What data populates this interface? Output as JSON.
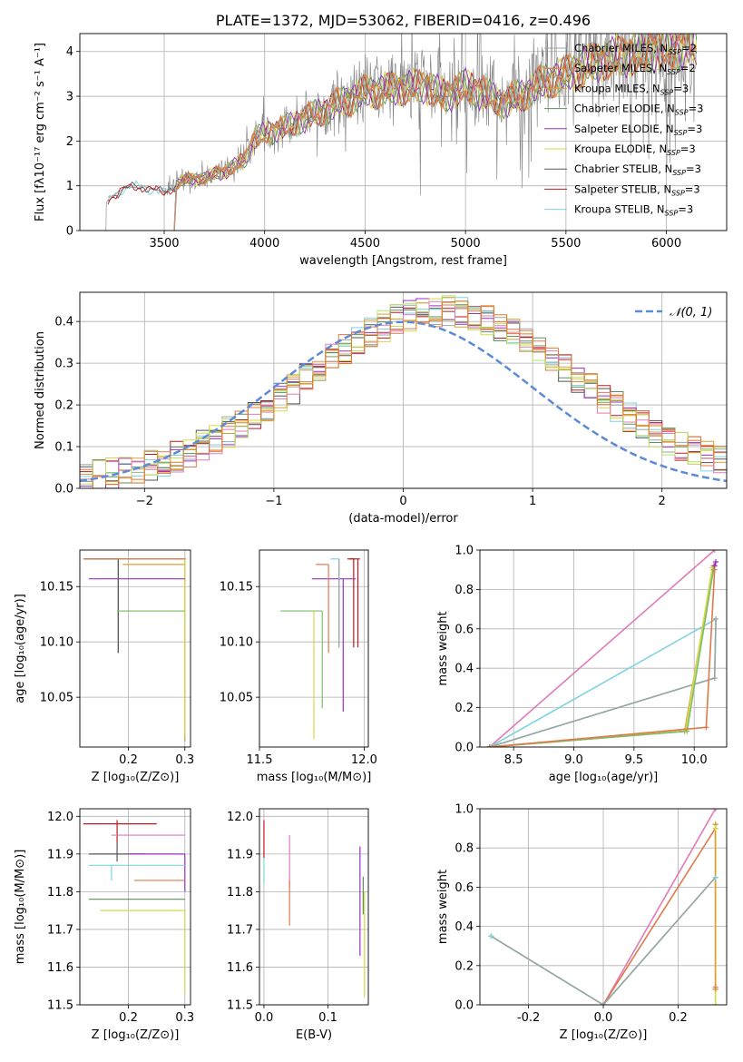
{
  "figure_title": "PLATE=1372, MJD=53062, FIBERID=0416, z=0.496",
  "colors": {
    "chabrier_miles": "#9aa5a0",
    "salpeter_miles": "#e0794a",
    "kroupa_miles": "#d9a030",
    "chabrier_elodie": "#5d8f5b",
    "salpeter_elodie": "#9b2fc4",
    "kroupa_elodie": "#d6d84a",
    "chabrier_stelib": "#555555",
    "salpeter_stelib": "#c0181e",
    "kroupa_stelib": "#7fd3e0",
    "gaussian": "#5b8ad8",
    "pink": "#e07bb8",
    "lime": "#b5e06a",
    "green": "#7bbf6a",
    "orange": "#e07b24",
    "grid": "#b0b0b0"
  },
  "chart_data": [
    {
      "id": "spectrum",
      "type": "line",
      "title": "PLATE=1372, MJD=53062, FIBERID=0416, z=0.496",
      "xlabel": "wavelength [Angstrom, rest frame]",
      "ylabel": "Flux [fλ10⁻¹⁷ erg cm⁻² s⁻¹ A⁻¹]",
      "xlim": [
        3080,
        6300
      ],
      "ylim": [
        0,
        4.4
      ],
      "xticks": [
        3500,
        4000,
        4500,
        5000,
        5500,
        6000
      ],
      "yticks": [
        0,
        1,
        2,
        3,
        4
      ],
      "legend_position": "top-right",
      "legend": [
        {
          "name": "Chabrier MILES, N",
          "sub": "SSP",
          "suffix": "=2",
          "color": "chabrier_miles"
        },
        {
          "name": "Salpeter MILES, N",
          "sub": "SSP",
          "suffix": "=2",
          "color": "salpeter_miles"
        },
        {
          "name": "Kroupa MILES, N",
          "sub": "SSP",
          "suffix": "=3",
          "color": "kroupa_miles"
        },
        {
          "name": "Chabrier ELODIE, N",
          "sub": "SSP",
          "suffix": "=3",
          "color": "chabrier_elodie"
        },
        {
          "name": "Salpeter ELODIE, N",
          "sub": "SSP",
          "suffix": "=3",
          "color": "salpeter_elodie"
        },
        {
          "name": "Kroupa ELODIE, N",
          "sub": "SSP",
          "suffix": "=3",
          "color": "kroupa_elodie"
        },
        {
          "name": "Chabrier STELIB, N",
          "sub": "SSP",
          "suffix": "=3",
          "color": "chabrier_stelib"
        },
        {
          "name": "Salpeter STELIB, N",
          "sub": "SSP",
          "suffix": "=3",
          "color": "salpeter_stelib"
        },
        {
          "name": "Kroupa STELIB, N",
          "sub": "SSP",
          "suffix": "=3",
          "color": "kroupa_stelib"
        }
      ],
      "data_start": 3210,
      "data_end": 6150,
      "model_start": 3550,
      "envelope": {
        "x": [
          3210,
          3230,
          3300,
          3400,
          3500,
          3600,
          3700,
          3800,
          3900,
          3950,
          4000,
          4100,
          4200,
          4300,
          4400,
          4500,
          4600,
          4700,
          4800,
          4900,
          5000,
          5100,
          5200,
          5300,
          5400,
          5500,
          5600,
          5700,
          5800,
          5900,
          6000,
          6100,
          6150
        ],
        "y": [
          0.6,
          0.75,
          0.95,
          1.0,
          0.85,
          1.15,
          1.2,
          1.35,
          1.6,
          2.1,
          2.2,
          2.35,
          2.55,
          2.75,
          2.95,
          3.15,
          3.2,
          3.25,
          3.3,
          3.05,
          3.3,
          3.1,
          2.9,
          3.15,
          3.4,
          3.55,
          3.75,
          3.9,
          4.0,
          4.1,
          4.15,
          4.2,
          4.25
        ]
      }
    },
    {
      "id": "residuals",
      "type": "step",
      "xlabel": "(data-model)/error",
      "ylabel": "Normed distribution",
      "xlim": [
        -2.5,
        2.5
      ],
      "ylim": [
        0,
        0.47
      ],
      "xticks": [
        -2,
        -1,
        0,
        1,
        2
      ],
      "yticks": [
        0.0,
        0.1,
        0.2,
        0.3,
        0.4
      ],
      "legend_position": "top-right",
      "legend": [
        {
          "name": "𝒩(0, 1)",
          "color": "gaussian",
          "style": "dashed"
        }
      ],
      "bin_width": 0.1,
      "gaussian": {
        "mu": 0,
        "sigma": 1
      }
    },
    {
      "id": "age_vs_Z",
      "type": "errorbar",
      "xlabel": "Z [log₁₀(Z/Z⊙)]",
      "ylabel": "age  [log₁₀(age/yr)]",
      "xlim": [
        0.114,
        0.31
      ],
      "ylim": [
        10.005,
        10.183
      ],
      "xticks": [
        0.2,
        0.3
      ],
      "yticks": [
        10.05,
        10.1,
        10.15
      ],
      "points": [
        {
          "x": 0.182,
          "y": 10.175,
          "xerr": [
            0.06,
            0.12
          ],
          "yerr": [
            0.085,
            0.0
          ],
          "color": "chabrier_miles"
        },
        {
          "x": 0.182,
          "y": 10.175,
          "xerr": [
            0.06,
            0.0
          ],
          "yerr": [
            0.085,
            0.0
          ],
          "color": "chabrier_stelib"
        },
        {
          "x": 0.3,
          "y": 10.175,
          "xerr": [
            0.18,
            0.0
          ],
          "yerr": [
            0.02,
            0.0
          ],
          "color": "salpeter_miles"
        },
        {
          "x": 0.3,
          "y": 10.17,
          "xerr": [
            0.11,
            0.0
          ],
          "yerr": [
            0.16,
            0.0
          ],
          "color": "kroupa_miles"
        },
        {
          "x": 0.3,
          "y": 10.175,
          "xerr": [
            0.0,
            0.0
          ],
          "yerr": [
            0.16,
            0.0
          ],
          "color": "kroupa_elodie"
        },
        {
          "x": 0.3,
          "y": 10.157,
          "xerr": [
            0.17,
            0.0
          ],
          "yerr": [
            0.0,
            0.0
          ],
          "color": "salpeter_elodie"
        },
        {
          "x": 0.3,
          "y": 10.128,
          "xerr": [
            0.12,
            0.0
          ],
          "yerr": [
            0.0,
            0.0
          ],
          "color": "kroupa_elodie"
        },
        {
          "x": 0.3,
          "y": 10.128,
          "xerr": [
            0.12,
            0.0
          ],
          "yerr": [
            0.0,
            0.0
          ],
          "color": "green"
        },
        {
          "x": 0.3,
          "y": 10.175,
          "xerr": [
            0.0,
            0.0
          ],
          "yerr": [
            0.0,
            0.0
          ],
          "color": "pink"
        }
      ]
    },
    {
      "id": "age_vs_mass",
      "type": "errorbar",
      "xlabel": "mass [log₁₀(M/M⊙)]",
      "ylabel": "",
      "xlim": [
        11.5,
        12.02
      ],
      "ylim": [
        10.005,
        10.183
      ],
      "xticks": [
        11.5,
        12.0
      ],
      "yticks": [
        10.05,
        10.1,
        10.15
      ],
      "points": [
        {
          "x": 11.97,
          "y": 10.175,
          "xerr": [
            0.04,
            0.01
          ],
          "yerr": [
            0.08,
            0.0
          ],
          "color": "salpeter_stelib"
        },
        {
          "x": 11.95,
          "y": 10.175,
          "xerr": [
            0.03,
            0.0
          ],
          "yerr": [
            0.08,
            0.0
          ],
          "color": "salpeter_stelib"
        },
        {
          "x": 11.9,
          "y": 10.157,
          "xerr": [
            0.15,
            0.06
          ],
          "yerr": [
            0.12,
            0.0
          ],
          "color": "salpeter_elodie"
        },
        {
          "x": 11.88,
          "y": 10.175,
          "xerr": [
            0.04,
            0.0
          ],
          "yerr": [
            0.08,
            0.0
          ],
          "color": "kroupa_stelib"
        },
        {
          "x": 11.83,
          "y": 10.17,
          "xerr": [
            0.06,
            0.0
          ],
          "yerr": [
            0.08,
            0.0
          ],
          "color": "salpeter_miles"
        },
        {
          "x": 11.8,
          "y": 10.128,
          "xerr": [
            0.2,
            0.0
          ],
          "yerr": [
            0.088,
            0.0
          ],
          "color": "green"
        },
        {
          "x": 11.76,
          "y": 10.128,
          "xerr": [
            0.0,
            0.0
          ],
          "yerr": [
            0.116,
            0.0
          ],
          "color": "kroupa_elodie"
        },
        {
          "x": 11.88,
          "y": 10.175,
          "xerr": [
            0.0,
            0.0
          ],
          "yerr": [
            0.08,
            0.0
          ],
          "color": "chabrier_miles"
        }
      ]
    },
    {
      "id": "mass_weight_vs_age",
      "type": "line",
      "xlabel": "age  [log₁₀(age/yr)]",
      "ylabel": "mass weight",
      "xlim": [
        8.22,
        10.27
      ],
      "ylim": [
        0,
        1.0
      ],
      "xticks": [
        8.5,
        9.0,
        9.5,
        10.0
      ],
      "yticks": [
        0.0,
        0.2,
        0.4,
        0.6,
        0.8,
        1.0
      ],
      "series": [
        {
          "color": "pink",
          "x": [
            8.3,
            10.17
          ],
          "y": [
            0.0,
            1.0
          ]
        },
        {
          "color": "kroupa_stelib",
          "x": [
            8.3,
            10.17,
            10.18,
            8.3
          ],
          "y": [
            0.0,
            0.35,
            0.65,
            0.0
          ]
        },
        {
          "color": "chabrier_miles",
          "x": [
            8.3,
            10.17,
            10.18
          ],
          "y": [
            0.0,
            0.35,
            0.65
          ]
        },
        {
          "color": "kroupa_miles",
          "x": [
            8.3,
            9.92,
            10.16,
            10.17
          ],
          "y": [
            0.0,
            0.08,
            0.92,
            0.92
          ]
        },
        {
          "color": "kroupa_elodie",
          "x": [
            8.3,
            9.93,
            10.15
          ],
          "y": [
            0.0,
            0.09,
            0.91
          ]
        },
        {
          "color": "green",
          "x": [
            8.3,
            9.94,
            10.16
          ],
          "y": [
            0.0,
            0.08,
            0.9
          ]
        },
        {
          "color": "salpeter_miles",
          "x": [
            8.3,
            10.1,
            10.17
          ],
          "y": [
            0.0,
            0.1,
            0.9
          ]
        },
        {
          "color": "salpeter_elodie",
          "x": [
            10.17,
            10.18
          ],
          "y": [
            0.92,
            0.94
          ]
        }
      ]
    },
    {
      "id": "mass_vs_Z",
      "type": "errorbar",
      "xlabel": "Z [log₁₀(Z/Z⊙)]",
      "ylabel": "mass [log₁₀(M/M⊙)]",
      "xlim": [
        0.114,
        0.31
      ],
      "ylim": [
        11.5,
        12.02
      ],
      "xticks": [
        0.2,
        0.3
      ],
      "yticks": [
        11.5,
        11.6,
        11.7,
        11.8,
        11.9,
        12.0
      ],
      "points": [
        {
          "x": 0.18,
          "y": 11.98,
          "xerr": [
            0.06,
            0.07
          ],
          "yerr": [
            0.05,
            0.01
          ],
          "color": "salpeter_stelib"
        },
        {
          "x": 0.3,
          "y": 11.95,
          "xerr": [
            0.13,
            0.0
          ],
          "yerr": [
            0.0,
            0.0
          ],
          "color": "pink"
        },
        {
          "x": 0.18,
          "y": 11.9,
          "xerr": [
            0.05,
            0.05
          ],
          "yerr": [
            0.02,
            0.03
          ],
          "color": "chabrier_stelib"
        },
        {
          "x": 0.3,
          "y": 11.9,
          "xerr": [
            0.1,
            0.0
          ],
          "yerr": [
            0.1,
            0.0
          ],
          "color": "salpeter_elodie"
        },
        {
          "x": 0.3,
          "y": 11.87,
          "xerr": [
            0.17,
            0.0
          ],
          "yerr": [
            0.0,
            0.0
          ],
          "color": "kroupa_stelib"
        },
        {
          "x": 0.3,
          "y": 11.83,
          "xerr": [
            0.09,
            0.0
          ],
          "yerr": [
            0.0,
            0.0
          ],
          "color": "salpeter_miles"
        },
        {
          "x": 0.3,
          "y": 11.78,
          "xerr": [
            0.17,
            0.0
          ],
          "yerr": [
            0.0,
            0.0
          ],
          "color": "chabrier_elodie"
        },
        {
          "x": 0.3,
          "y": 11.75,
          "xerr": [
            0.15,
            0.0
          ],
          "yerr": [
            0.22,
            0.0
          ],
          "color": "kroupa_elodie"
        },
        {
          "x": 0.17,
          "y": 11.87,
          "xerr": [
            0.0,
            0.0
          ],
          "yerr": [
            0.04,
            0.0
          ],
          "color": "kroupa_stelib"
        }
      ]
    },
    {
      "id": "mass_vs_ebv",
      "type": "errorbar",
      "xlabel": "E(B-V)",
      "ylabel": "",
      "xlim": [
        -0.007,
        0.163
      ],
      "ylim": [
        11.5,
        12.02
      ],
      "xticks": [
        0.0,
        0.1
      ],
      "yticks": [
        11.5,
        11.6,
        11.7,
        11.8,
        11.9,
        12.0
      ],
      "points": [
        {
          "x": 0.0,
          "y": 11.98,
          "xerr": [
            0.0,
            0.0
          ],
          "yerr": [
            0.09,
            0.01
          ],
          "color": "salpeter_stelib"
        },
        {
          "x": 0.0,
          "y": 11.87,
          "xerr": [
            0.0,
            0.0
          ],
          "yerr": [
            0.05,
            0.02
          ],
          "color": "kroupa_stelib"
        },
        {
          "x": 0.04,
          "y": 11.95,
          "xerr": [
            0.0,
            0.0
          ],
          "yerr": [
            0.14,
            0.0
          ],
          "color": "pink"
        },
        {
          "x": 0.04,
          "y": 11.83,
          "xerr": [
            0.0,
            0.0
          ],
          "yerr": [
            0.12,
            0.0
          ],
          "color": "salpeter_miles"
        },
        {
          "x": 0.15,
          "y": 11.92,
          "xerr": [
            0.0,
            0.0
          ],
          "yerr": [
            0.29,
            0.0
          ],
          "color": "salpeter_elodie"
        },
        {
          "x": 0.155,
          "y": 11.84,
          "xerr": [
            0.0,
            0.0
          ],
          "yerr": [
            0.1,
            0.0
          ],
          "color": "chabrier_elodie"
        },
        {
          "x": 0.157,
          "y": 11.8,
          "xerr": [
            0.0,
            0.0
          ],
          "yerr": [
            0.28,
            0.0
          ],
          "color": "kroupa_elodie"
        }
      ]
    },
    {
      "id": "mass_weight_vs_Z",
      "type": "line",
      "xlabel": "Z [log₁₀(Z/Z⊙)]",
      "ylabel": "mass weight",
      "xlim": [
        -0.33,
        0.33
      ],
      "ylim": [
        0,
        1.0
      ],
      "xticks": [
        -0.2,
        0.0,
        0.2
      ],
      "yticks": [
        0.0,
        0.2,
        0.4,
        0.6,
        0.8,
        1.0
      ],
      "series": [
        {
          "color": "pink",
          "x": [
            0.0,
            0.3
          ],
          "y": [
            0.0,
            1.0
          ]
        },
        {
          "color": "salpeter_miles",
          "x": [
            0.0,
            0.3
          ],
          "y": [
            0.0,
            0.9
          ]
        },
        {
          "color": "kroupa_stelib",
          "x": [
            -0.3,
            0.0,
            0.3
          ],
          "y": [
            0.35,
            0.0,
            0.65
          ]
        },
        {
          "color": "chabrier_miles",
          "x": [
            -0.3,
            0.0,
            0.3
          ],
          "y": [
            0.35,
            0.0,
            0.65
          ]
        },
        {
          "color": "kroupa_elodie",
          "x": [
            0.3,
            0.3,
            0.3
          ],
          "y": [
            0.0,
            0.92,
            0.08
          ]
        },
        {
          "color": "kroupa_miles",
          "x": [
            0.3,
            0.3
          ],
          "y": [
            0.08,
            0.92
          ]
        }
      ],
      "markers": [
        {
          "x": 0.3,
          "y": 0.92,
          "color": "kroupa_miles"
        },
        {
          "x": 0.3,
          "y": 0.9,
          "color": "kroupa_elodie"
        },
        {
          "x": 0.3,
          "y": 0.08,
          "color": "kroupa_miles"
        },
        {
          "x": 0.3,
          "y": 0.09,
          "color": "salpeter_miles"
        },
        {
          "x": 0.3,
          "y": 0.0,
          "color": "kroupa_elodie"
        },
        {
          "x": 0.3,
          "y": 0.65,
          "color": "kroupa_stelib"
        },
        {
          "x": -0.3,
          "y": 0.35,
          "color": "kroupa_stelib"
        },
        {
          "x": 0.3,
          "y": 1.0,
          "color": "pink"
        }
      ]
    }
  ]
}
